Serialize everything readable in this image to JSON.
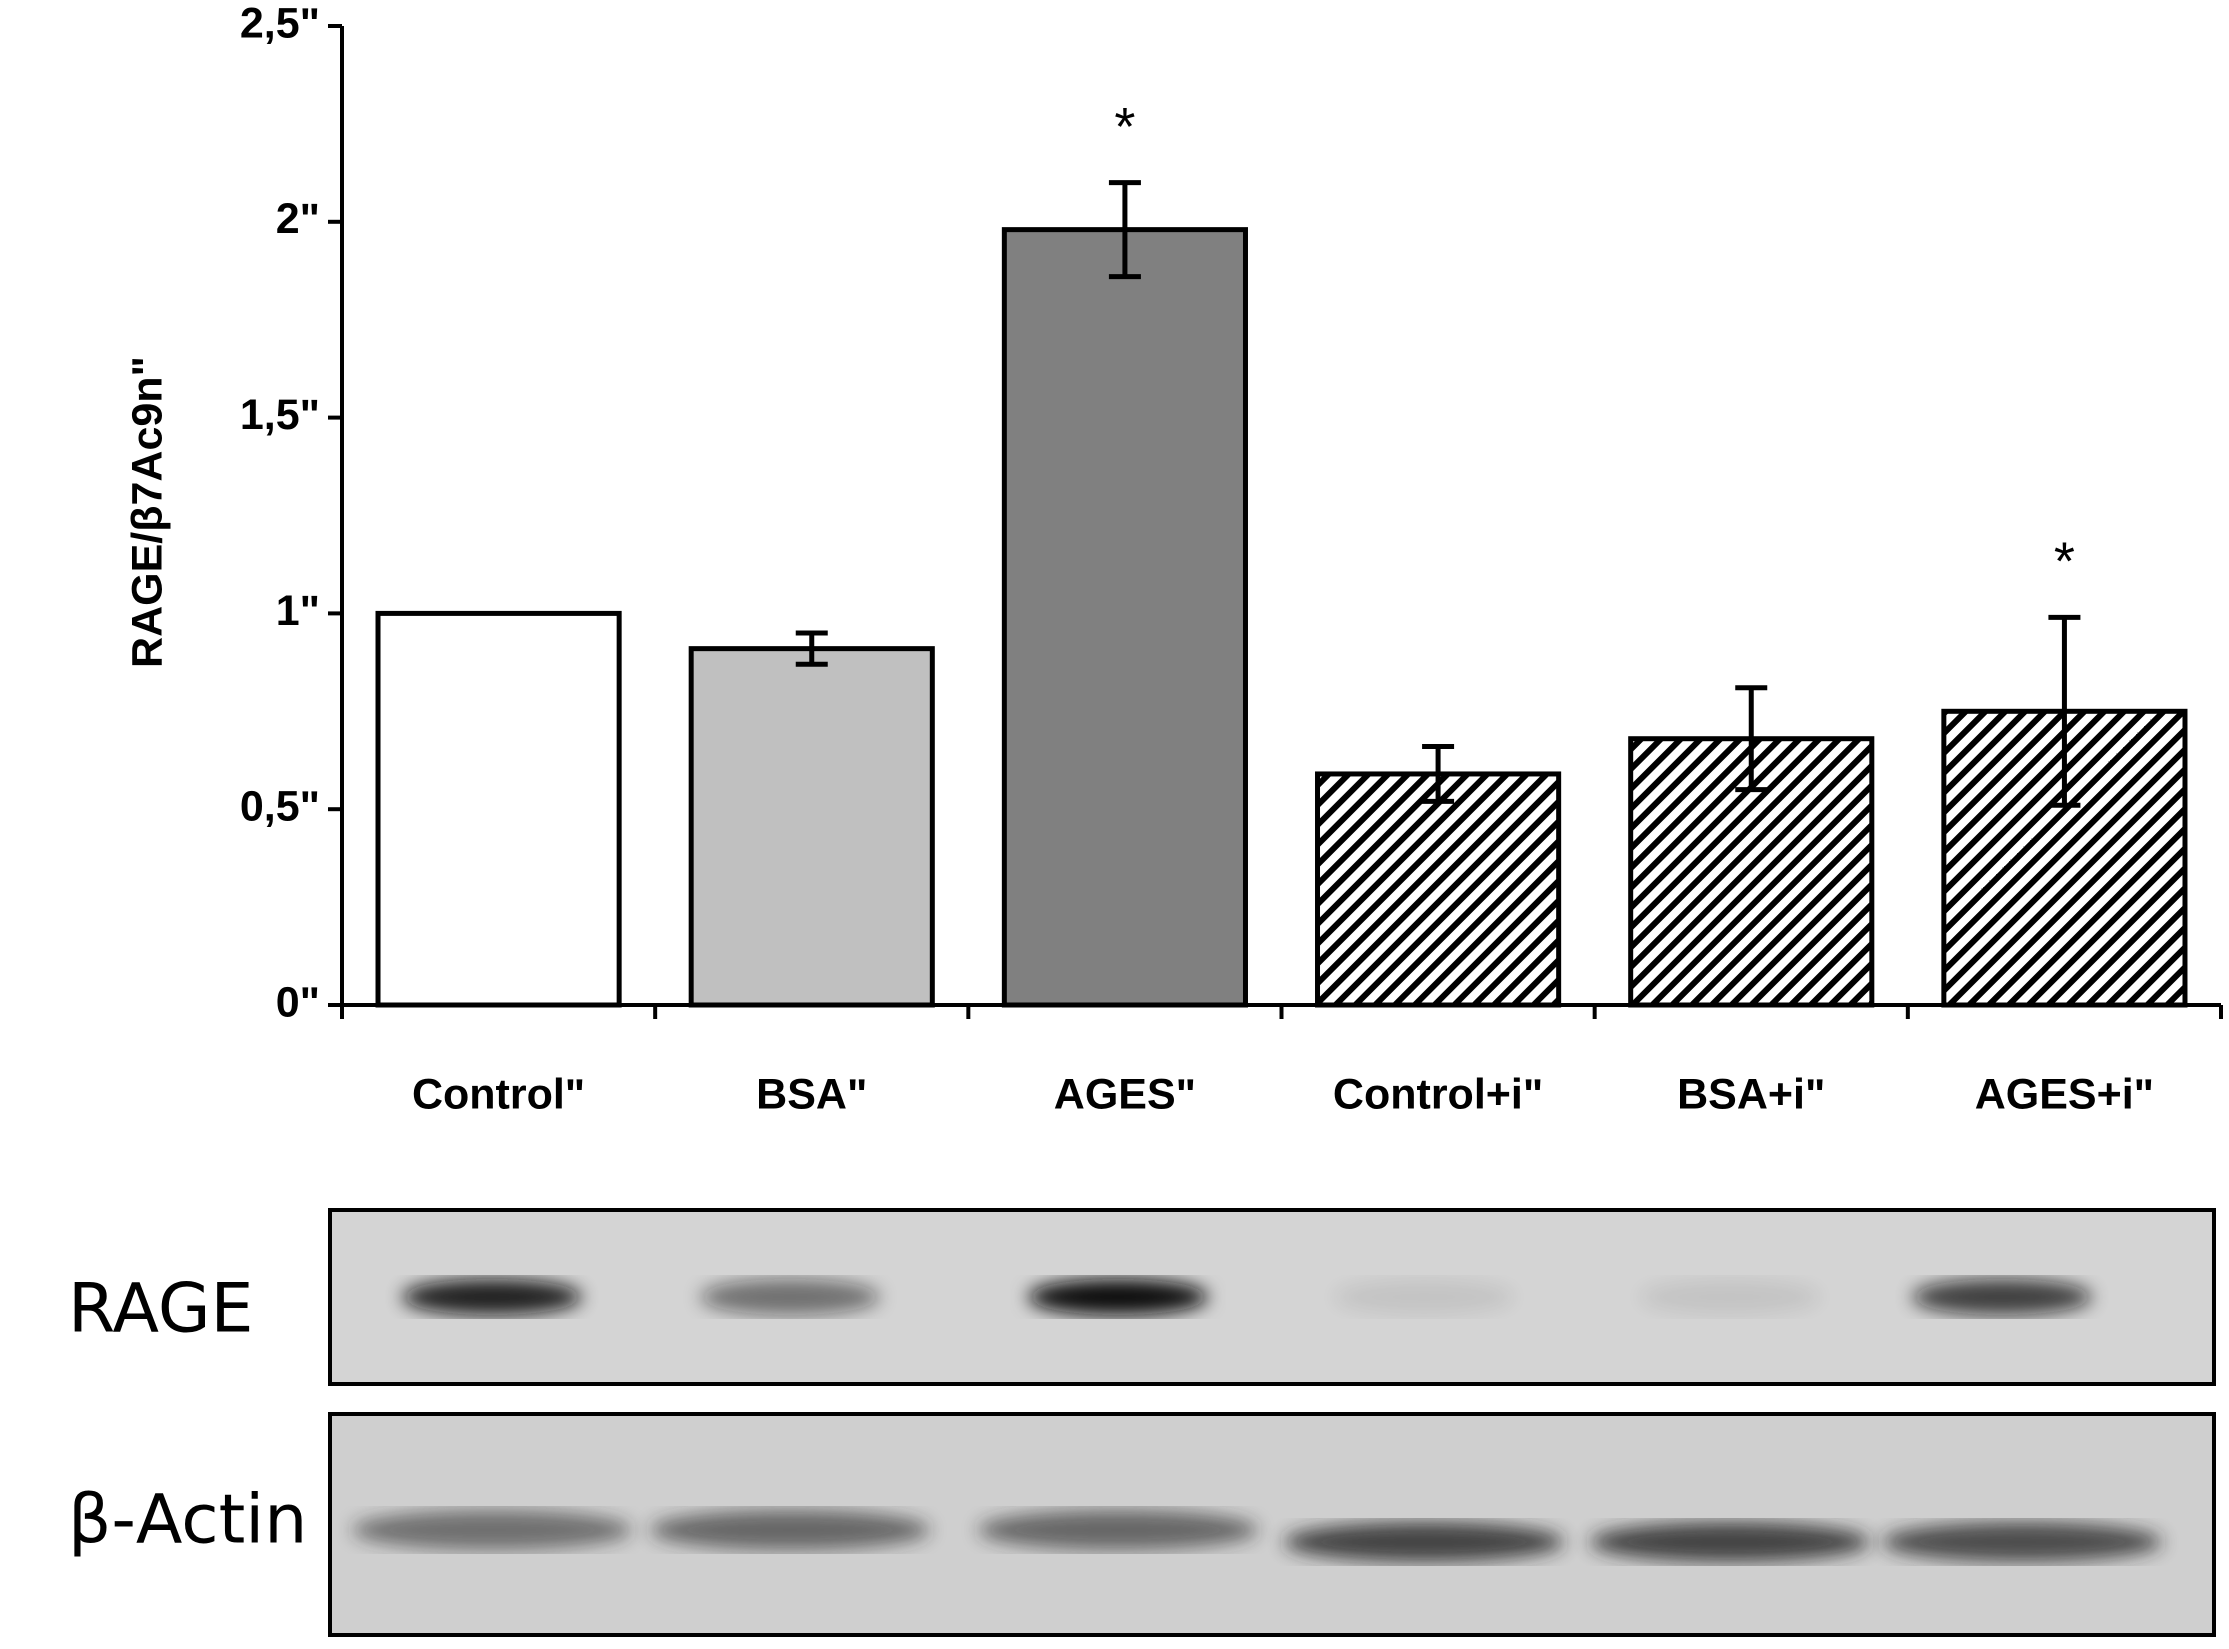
{
  "chart_data": {
    "type": "bar",
    "y_label": "RAGE/β7Ac9n\"",
    "categories": [
      "Control\"",
      "BSA\"",
      "AGES\"",
      "Control+i\"",
      "BSA+i\"",
      "AGES+i\""
    ],
    "values": [
      1.0,
      0.91,
      1.98,
      0.59,
      0.68,
      0.75
    ],
    "errors": [
      null,
      0.04,
      0.12,
      0.07,
      0.13,
      0.24
    ],
    "annotations": [
      null,
      null,
      "*",
      null,
      null,
      "*"
    ],
    "colors": [
      "#ffffff",
      "#c0c0c0",
      "#808080",
      "#ffffff",
      "#ffffff",
      "#ffffff"
    ],
    "hatched": [
      false,
      false,
      false,
      true,
      true,
      true
    ],
    "ylim": [
      0,
      2.5
    ],
    "yticks": [
      {
        "value": 0,
        "label": "0\""
      },
      {
        "value": 0.5,
        "label": "0,5\""
      },
      {
        "value": 1,
        "label": "1\""
      },
      {
        "value": 1.5,
        "label": "1,5\""
      },
      {
        "value": 2,
        "label": "2\""
      },
      {
        "value": 2.5,
        "label": "2,5\""
      }
    ],
    "grid": false
  },
  "blots": [
    {
      "label": "RAGE"
    },
    {
      "label": "β-Actin"
    }
  ]
}
